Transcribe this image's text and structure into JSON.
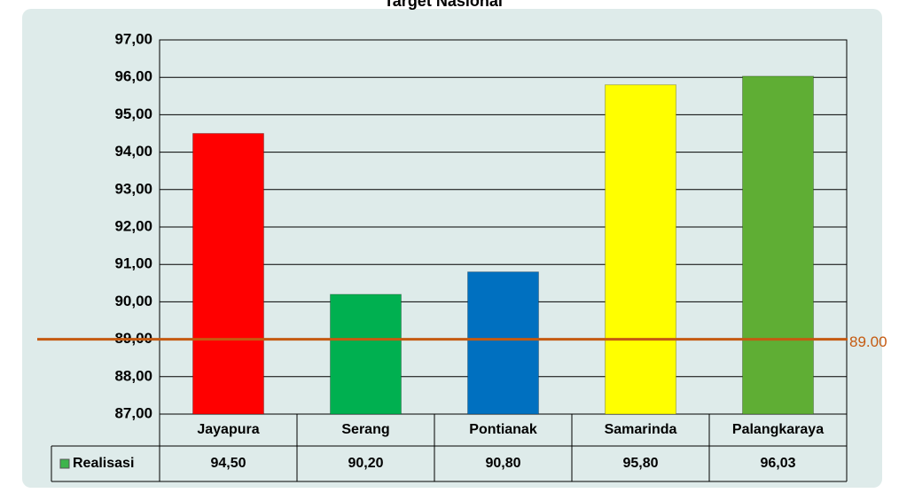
{
  "chart_data": {
    "type": "bar",
    "title": "Target Nasional",
    "categories": [
      "Jayapura",
      "Serang",
      "Pontianak",
      "Samarinda",
      "Palangkaraya"
    ],
    "series": [
      {
        "name": "Realisasi",
        "color": "#3cb44b",
        "colors": [
          "#ff0000",
          "#00b050",
          "#0070c0",
          "#ffff00",
          "#5fae34"
        ],
        "values": [
          94.5,
          90.2,
          90.8,
          95.8,
          96.03
        ],
        "value_labels": [
          "94,50",
          "90,20",
          "90,80",
          "95,80",
          "96,03"
        ]
      }
    ],
    "ylim": [
      87,
      97
    ],
    "yticks": [
      {
        "value": 87,
        "label": "87,00"
      },
      {
        "value": 88,
        "label": "88,00"
      },
      {
        "value": 89,
        "label": "89,00"
      },
      {
        "value": 90,
        "label": "90,00"
      },
      {
        "value": 91,
        "label": "91,00"
      },
      {
        "value": 92,
        "label": "92,00"
      },
      {
        "value": 93,
        "label": "93,00"
      },
      {
        "value": 94,
        "label": "94,00"
      },
      {
        "value": 95,
        "label": "95,00"
      },
      {
        "value": 96,
        "label": "96,00"
      },
      {
        "value": 97,
        "label": "97,00"
      }
    ],
    "grid": true,
    "target_line": {
      "value": 89,
      "label": "89.00",
      "color": "#c55a11"
    }
  }
}
